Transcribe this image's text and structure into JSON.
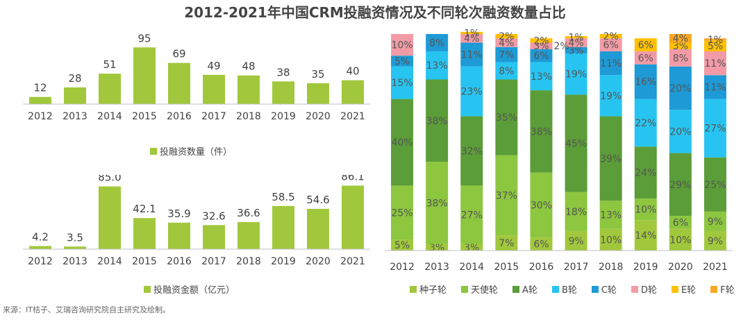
{
  "title": "2012-2021年中国CRM投融资情况及不同轮次融资数量占比",
  "source": "来源：IT桔子、艾瑞咨询研究院自主研究及绘制。",
  "colors": {
    "bar": "#a1c83c",
    "axis": "#bfbfbf",
    "text": "#404040",
    "seg_text": "#555555",
    "seed": "#a1c83c",
    "angel": "#8dc63f",
    "roundA": "#5b9d38",
    "roundB": "#27c4f2",
    "roundC": "#1e9ad6",
    "roundD": "#f29ba6",
    "roundE": "#ffc000",
    "roundF": "#f7a823"
  },
  "chart_data": [
    {
      "id": "count",
      "type": "bar",
      "title": "",
      "categories": [
        "2012",
        "2013",
        "2014",
        "2015",
        "2016",
        "2017",
        "2018",
        "2019",
        "2020",
        "2021"
      ],
      "values": [
        12,
        28,
        51,
        95,
        69,
        49,
        48,
        38,
        35,
        40
      ],
      "labels": [
        "12",
        "28",
        "51",
        "95",
        "69",
        "49",
        "48",
        "38",
        "35",
        "40"
      ],
      "legend": "投融资数量（件）",
      "ylim": [
        0,
        100
      ]
    },
    {
      "id": "amount",
      "type": "bar",
      "title": "",
      "categories": [
        "2012",
        "2013",
        "2014",
        "2015",
        "2016",
        "2017",
        "2018",
        "2019",
        "2020",
        "2021"
      ],
      "values": [
        4.2,
        3.5,
        85.0,
        42.1,
        35.9,
        32.6,
        36.6,
        58.5,
        54.6,
        86.1
      ],
      "labels": [
        "4.2",
        "3.5",
        "85.0",
        "42.1",
        "35.9",
        "32.6",
        "36.6",
        "58.5",
        "54.6",
        "86.1"
      ],
      "legend": "投融资金额（亿元）",
      "ylim": [
        0,
        95
      ]
    },
    {
      "id": "rounds",
      "type": "bar",
      "stacked": true,
      "percent": true,
      "categories": [
        "2012",
        "2013",
        "2014",
        "2015",
        "2016",
        "2017",
        "2018",
        "2019",
        "2020",
        "2021"
      ],
      "series": [
        {
          "name": "种子轮",
          "key": "seed",
          "values": [
            5,
            3,
            3,
            7,
            6,
            9,
            10,
            14,
            10,
            9
          ]
        },
        {
          "name": "天使轮",
          "key": "angel",
          "values": [
            25,
            38,
            27,
            37,
            30,
            18,
            13,
            10,
            6,
            9
          ]
        },
        {
          "name": "A轮",
          "key": "roundA",
          "values": [
            40,
            38,
            32,
            35,
            38,
            45,
            39,
            24,
            29,
            25
          ]
        },
        {
          "name": "B轮",
          "key": "roundB",
          "values": [
            15,
            13,
            23,
            8,
            13,
            19,
            19,
            22,
            20,
            27
          ]
        },
        {
          "name": "C轮",
          "key": "roundC",
          "values": [
            5,
            8,
            11,
            7,
            6,
            3,
            11,
            16,
            20,
            11
          ]
        },
        {
          "name": "D轮",
          "key": "roundD",
          "values": [
            10,
            0,
            4,
            4,
            3,
            4,
            6,
            6,
            8,
            11
          ]
        },
        {
          "name": "E轮",
          "key": "roundE",
          "values": [
            0,
            0,
            1,
            2,
            2,
            1,
            2,
            6,
            3,
            5
          ]
        },
        {
          "name": "F轮",
          "key": "roundF",
          "values": [
            0,
            0,
            0,
            0,
            0,
            0,
            0,
            0,
            4,
            1
          ]
        }
      ],
      "extra_labels": [
        {
          "category": "2016",
          "text": "2%"
        }
      ],
      "ylim": [
        0,
        100
      ]
    }
  ]
}
